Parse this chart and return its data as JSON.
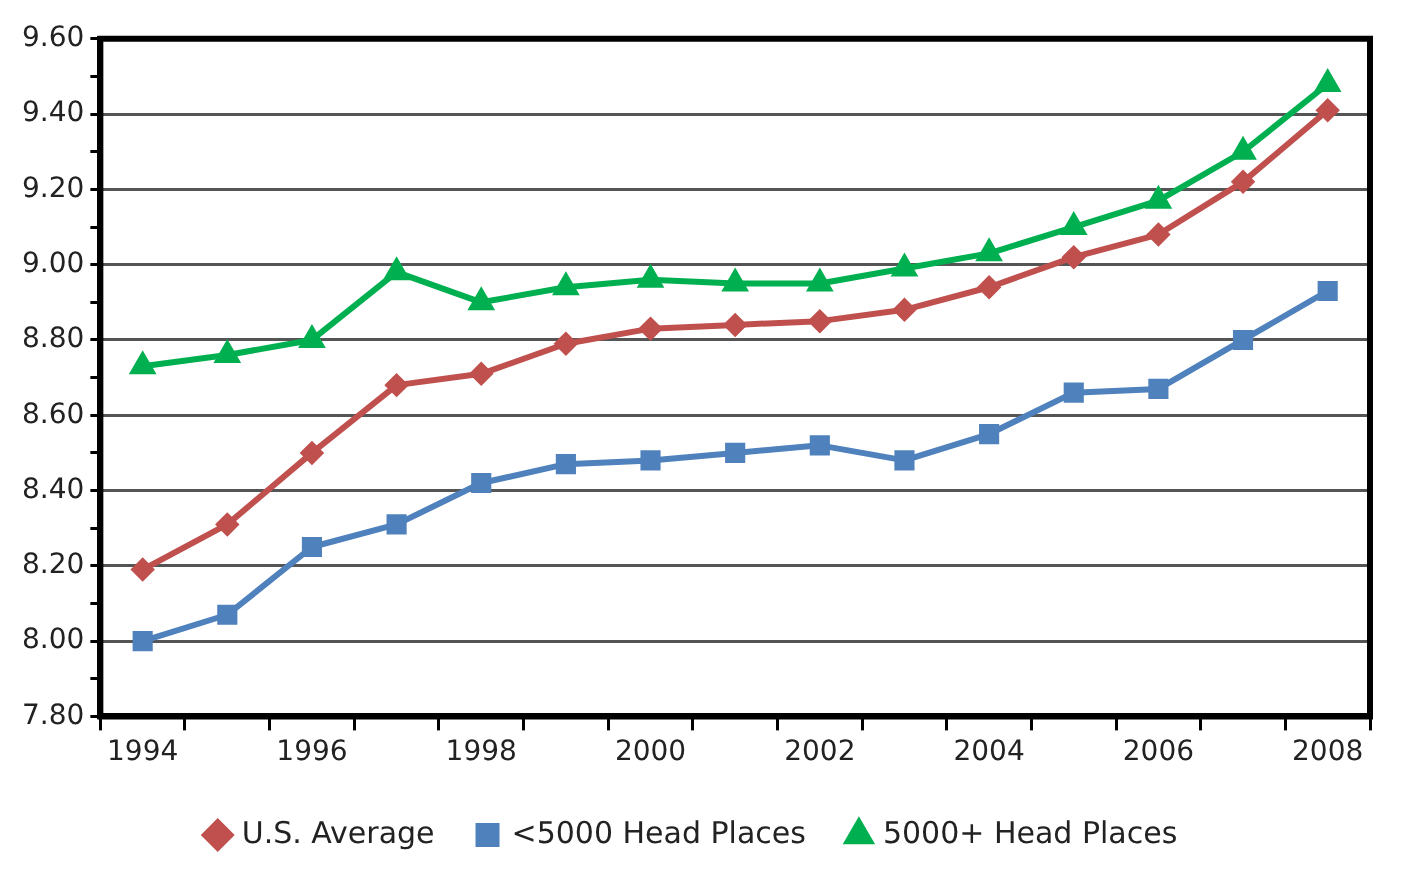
{
  "chart_data": {
    "type": "line",
    "categories": [
      "1994",
      null,
      "1996",
      null,
      "1998",
      null,
      "2000",
      null,
      "2002",
      null,
      "2004",
      null,
      "2006",
      null,
      "2008"
    ],
    "series": [
      {
        "name": "U.S. Average",
        "color": "#c0504d",
        "marker": "diamond",
        "values": [
          8.19,
          8.31,
          8.5,
          8.68,
          8.71,
          8.79,
          8.83,
          8.84,
          8.85,
          8.88,
          8.94,
          9.02,
          9.08,
          9.22,
          9.41
        ]
      },
      {
        "name": "<5000 Head Places",
        "color": "#4f81bd",
        "marker": "square",
        "values": [
          8.0,
          8.07,
          8.25,
          8.31,
          8.42,
          8.47,
          8.48,
          8.5,
          8.52,
          8.48,
          8.55,
          8.66,
          8.67,
          8.8,
          8.93
        ]
      },
      {
        "name": "5000+ Head Places",
        "color": "#00b050",
        "marker": "triangle",
        "values": [
          8.73,
          8.76,
          8.8,
          8.98,
          8.9,
          8.94,
          8.96,
          8.95,
          8.95,
          8.99,
          9.03,
          9.1,
          9.17,
          9.3,
          9.48
        ]
      }
    ],
    "ylim": [
      7.8,
      9.6
    ],
    "yticks": [
      {
        "value": 7.8,
        "label": "7.80"
      },
      {
        "value": 7.9,
        "label": null
      },
      {
        "value": 8.0,
        "label": "8.00"
      },
      {
        "value": 8.1,
        "label": null
      },
      {
        "value": 8.2,
        "label": "8.20"
      },
      {
        "value": 8.3,
        "label": null
      },
      {
        "value": 8.4,
        "label": "8.40"
      },
      {
        "value": 8.5,
        "label": null
      },
      {
        "value": 8.6,
        "label": "8.60"
      },
      {
        "value": 8.7,
        "label": null
      },
      {
        "value": 8.8,
        "label": "8.80"
      },
      {
        "value": 8.9,
        "label": null
      },
      {
        "value": 9.0,
        "label": "9.00"
      },
      {
        "value": 9.1,
        "label": null
      },
      {
        "value": 9.2,
        "label": "9.20"
      },
      {
        "value": 9.3,
        "label": null
      },
      {
        "value": 9.4,
        "label": "9.40"
      },
      {
        "value": 9.5,
        "label": null
      },
      {
        "value": 9.6,
        "label": "9.60"
      }
    ],
    "grid": "y",
    "legend": "bottom",
    "line_style": "solid"
  }
}
